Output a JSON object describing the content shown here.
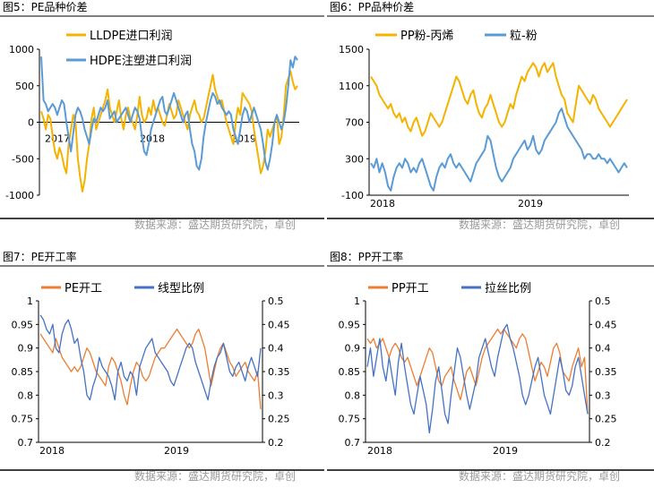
{
  "colors": {
    "orange": "#F4B300",
    "blue": "#5B9BD5",
    "pe_orange": "#ED7D31",
    "navy": "#4472C4",
    "source_grey": "#9a9a9a",
    "rule": "#000000"
  },
  "source_text": "数据来源：盛达期货研究院，卓创",
  "chart_data": [
    {
      "title": "图5：PE品种价差",
      "type": "line",
      "x_tick_labels": [
        "2017",
        "2018",
        "2019"
      ],
      "ylim": [
        -1000,
        1000
      ],
      "y_ticks": [
        "1000",
        "500",
        "0",
        "-500",
        "-1000"
      ],
      "legend": "top-center",
      "series": [
        {
          "name": "LLDPE进口利润",
          "color": "#F4B300",
          "values": [
            150,
            50,
            -100,
            100,
            50,
            -200,
            -400,
            -500,
            -350,
            -450,
            -600,
            -700,
            -300,
            -100,
            100,
            0,
            -500,
            -750,
            -950,
            -800,
            -500,
            -300,
            50,
            200,
            -100,
            0,
            100,
            200,
            300,
            450,
            200,
            100,
            0,
            150,
            300,
            50,
            -100,
            100,
            200,
            50,
            0,
            -100,
            100,
            350,
            100,
            0,
            50,
            200,
            100,
            300,
            150,
            200,
            100,
            0,
            -50,
            100,
            250,
            150,
            50,
            100,
            300,
            200,
            100,
            0,
            -100,
            100,
            200,
            300,
            150,
            100,
            0,
            50,
            200,
            350,
            500,
            650,
            450,
            350,
            250,
            300,
            150,
            0,
            -100,
            -200,
            -300,
            0,
            200,
            100,
            400,
            350,
            300,
            250,
            150,
            -100,
            -300,
            -500,
            -700,
            -600,
            -400,
            -100,
            -200,
            -100,
            0,
            100,
            -300,
            -200,
            100,
            500,
            600,
            700,
            550,
            450,
            500
          ]
        },
        {
          "name": "HDPE注塑进口利润",
          "color": "#5B9BD5",
          "values": [
            900,
            300,
            250,
            150,
            200,
            250,
            200,
            100,
            200,
            300,
            250,
            0,
            -200,
            -400,
            -150,
            100,
            200,
            150,
            50,
            -100,
            -200,
            -300,
            -100,
            50,
            0,
            100,
            200,
            150,
            200,
            300,
            50,
            100,
            150,
            0,
            50,
            100,
            150,
            200,
            100,
            0,
            100,
            200,
            150,
            50,
            -200,
            -400,
            -450,
            -300,
            -100,
            0,
            100,
            200,
            300,
            350,
            150,
            100,
            200,
            300,
            400,
            300,
            200,
            100,
            0,
            100,
            150,
            -100,
            -300,
            -400,
            -600,
            -650,
            -500,
            -200,
            0,
            150,
            300,
            400,
            350,
            250,
            300,
            200,
            150,
            100,
            150,
            100,
            -100,
            -200,
            -300,
            -100,
            100,
            200,
            150,
            0,
            100,
            200,
            100,
            0,
            -100,
            -300,
            -550,
            -650,
            -500,
            -300,
            0,
            100,
            0,
            -100,
            0,
            200,
            500,
            850,
            750,
            900,
            850
          ]
        }
      ]
    },
    {
      "title": "图6：PP品种价差",
      "type": "line",
      "x_tick_labels": [
        "2018",
        "2019"
      ],
      "ylim": [
        -100,
        1500
      ],
      "y_ticks": [
        "1500",
        "1100",
        "700",
        "300",
        "-100"
      ],
      "legend": "top-center",
      "series": [
        {
          "name": "PP粉-丙烯",
          "color": "#F4B300",
          "values": [
            1200,
            1150,
            1100,
            1000,
            950,
            900,
            850,
            900,
            800,
            750,
            800,
            700,
            750,
            650,
            600,
            700,
            750,
            650,
            550,
            600,
            700,
            800,
            750,
            700,
            650,
            700,
            800,
            900,
            1000,
            1100,
            1200,
            1150,
            1050,
            950,
            900,
            1000,
            1050,
            900,
            800,
            750,
            850,
            900,
            1000,
            900,
            800,
            700,
            650,
            700,
            800,
            900,
            850,
            1000,
            1100,
            1200,
            1150,
            1250,
            1300,
            1350,
            1300,
            1200,
            1300,
            1350,
            1250,
            1300,
            1350,
            1200,
            1100,
            1000,
            950,
            800,
            750,
            700,
            900,
            1100,
            1050,
            1000,
            950,
            900,
            1000,
            950,
            850,
            800,
            750,
            700,
            650,
            700,
            750,
            800,
            850,
            900,
            950
          ]
        },
        {
          "name": "粒-粉",
          "color": "#5B9BD5",
          "values": [
            250,
            200,
            300,
            150,
            250,
            150,
            0,
            -50,
            100,
            200,
            250,
            200,
            300,
            250,
            150,
            200,
            150,
            250,
            300,
            200,
            100,
            0,
            -50,
            100,
            200,
            250,
            200,
            300,
            350,
            250,
            200,
            250,
            200,
            150,
            100,
            50,
            150,
            250,
            300,
            350,
            400,
            550,
            500,
            350,
            200,
            100,
            50,
            100,
            150,
            200,
            300,
            350,
            400,
            450,
            500,
            400,
            450,
            550,
            400,
            350,
            400,
            500,
            550,
            600,
            650,
            700,
            800,
            850,
            750,
            650,
            600,
            550,
            500,
            450,
            400,
            300,
            350,
            350,
            300,
            300,
            350,
            300,
            300,
            250,
            300,
            250,
            200,
            150,
            200,
            250,
            200
          ]
        }
      ]
    },
    {
      "title": "图7：PE开工率",
      "type": "line",
      "x_tick_labels": [
        "2018",
        "2019"
      ],
      "ylim": [
        0.7,
        1.0
      ],
      "y_ticks": [
        "1",
        "0.95",
        "0.9",
        "0.85",
        "0.8",
        "0.75",
        "0.7"
      ],
      "y2lim": [
        0.2,
        0.5
      ],
      "y2_ticks": [
        "0.5",
        "0.45",
        "0.4",
        "0.35",
        "0.3",
        "0.25",
        "0.2"
      ],
      "legend": "top-center",
      "series": [
        {
          "name": "PE开工",
          "color": "#ED7D31",
          "axis": "left",
          "values": [
            0.93,
            0.92,
            0.91,
            0.9,
            0.89,
            0.92,
            0.9,
            0.88,
            0.87,
            0.86,
            0.85,
            0.86,
            0.85,
            0.86,
            0.88,
            0.9,
            0.89,
            0.87,
            0.85,
            0.84,
            0.83,
            0.82,
            0.86,
            0.88,
            0.87,
            0.85,
            0.83,
            0.8,
            0.78,
            0.82,
            0.85,
            0.87,
            0.86,
            0.84,
            0.83,
            0.84,
            0.86,
            0.88,
            0.89,
            0.9,
            0.9,
            0.91,
            0.92,
            0.93,
            0.94,
            0.93,
            0.92,
            0.91,
            0.9,
            0.91,
            0.93,
            0.94,
            0.92,
            0.9,
            0.86,
            0.82,
            0.85,
            0.88,
            0.9,
            0.91,
            0.89,
            0.87,
            0.86,
            0.84,
            0.85,
            0.86,
            0.87,
            0.85,
            0.84,
            0.83,
            0.85,
            0.77
          ]
        },
        {
          "name": "线型比例",
          "color": "#4472C4",
          "axis": "right",
          "values": [
            0.47,
            0.46,
            0.44,
            0.43,
            0.45,
            0.4,
            0.39,
            0.43,
            0.45,
            0.46,
            0.44,
            0.41,
            0.42,
            0.38,
            0.35,
            0.3,
            0.29,
            0.32,
            0.34,
            0.38,
            0.36,
            0.35,
            0.34,
            0.32,
            0.29,
            0.35,
            0.37,
            0.34,
            0.33,
            0.35,
            0.34,
            0.3,
            0.36,
            0.38,
            0.4,
            0.41,
            0.42,
            0.39,
            0.38,
            0.37,
            0.36,
            0.35,
            0.33,
            0.32,
            0.34,
            0.36,
            0.38,
            0.4,
            0.41,
            0.4,
            0.37,
            0.35,
            0.33,
            0.31,
            0.29,
            0.33,
            0.36,
            0.38,
            0.39,
            0.41,
            0.38,
            0.35,
            0.34,
            0.36,
            0.37,
            0.35,
            0.33,
            0.36,
            0.38,
            0.36,
            0.34,
            0.4
          ]
        }
      ]
    },
    {
      "title": "图8：PP开工率",
      "type": "line",
      "x_tick_labels": [
        "2018",
        "2019"
      ],
      "ylim": [
        0.7,
        1.0
      ],
      "y_ticks": [
        "1",
        "0.95",
        "0.9",
        "0.85",
        "0.8",
        "0.75",
        "0.7"
      ],
      "y2lim": [
        0.2,
        0.5
      ],
      "y2_ticks": [
        "0.5",
        "0.45",
        "0.4",
        "0.35",
        "0.3",
        "0.25",
        "0.2"
      ],
      "legend": "top-center",
      "series": [
        {
          "name": "PP开工",
          "color": "#ED7D31",
          "axis": "left",
          "values": [
            0.92,
            0.91,
            0.92,
            0.9,
            0.91,
            0.92,
            0.9,
            0.88,
            0.9,
            0.91,
            0.9,
            0.88,
            0.87,
            0.88,
            0.86,
            0.84,
            0.82,
            0.84,
            0.86,
            0.88,
            0.9,
            0.89,
            0.86,
            0.83,
            0.82,
            0.84,
            0.85,
            0.86,
            0.83,
            0.81,
            0.79,
            0.82,
            0.85,
            0.86,
            0.84,
            0.82,
            0.85,
            0.88,
            0.9,
            0.91,
            0.92,
            0.93,
            0.94,
            0.93,
            0.94,
            0.93,
            0.92,
            0.91,
            0.9,
            0.92,
            0.93,
            0.92,
            0.89,
            0.86,
            0.83,
            0.85,
            0.87,
            0.86,
            0.84,
            0.87,
            0.9,
            0.91,
            0.89,
            0.85,
            0.84,
            0.83,
            0.86,
            0.88,
            0.9,
            0.86,
            0.88,
            0.76
          ]
        },
        {
          "name": "拉丝比例",
          "color": "#4472C4",
          "axis": "right",
          "values": [
            0.36,
            0.4,
            0.34,
            0.38,
            0.42,
            0.36,
            0.33,
            0.38,
            0.34,
            0.3,
            0.37,
            0.41,
            0.36,
            0.32,
            0.28,
            0.26,
            0.3,
            0.34,
            0.31,
            0.28,
            0.22,
            0.27,
            0.33,
            0.36,
            0.31,
            0.26,
            0.24,
            0.3,
            0.35,
            0.4,
            0.38,
            0.34,
            0.3,
            0.27,
            0.3,
            0.33,
            0.38,
            0.4,
            0.42,
            0.39,
            0.36,
            0.34,
            0.38,
            0.41,
            0.44,
            0.45,
            0.42,
            0.4,
            0.37,
            0.34,
            0.3,
            0.28,
            0.3,
            0.33,
            0.36,
            0.38,
            0.34,
            0.3,
            0.28,
            0.26,
            0.3,
            0.34,
            0.38,
            0.35,
            0.31,
            0.3,
            0.32,
            0.36,
            0.38,
            0.34,
            0.3,
            0.26
          ]
        }
      ]
    }
  ]
}
